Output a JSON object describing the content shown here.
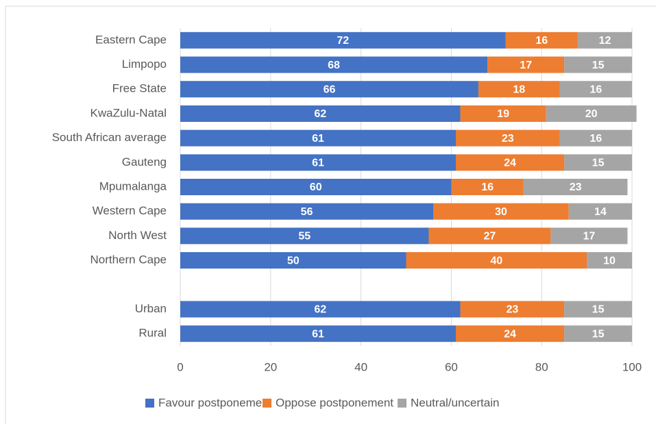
{
  "chart_data": {
    "type": "stacked-bar-horizontal",
    "categories": [
      "Eastern Cape",
      "Limpopo",
      "Free State",
      "KwaZulu-Natal",
      "South African average",
      "Gauteng",
      "Mpumalanga",
      "Western Cape",
      "North West",
      "Northern Cape",
      null,
      "Urban",
      "Rural"
    ],
    "series": [
      {
        "name": "Favour postponement",
        "color": "#4472c4",
        "values": [
          72,
          68,
          66,
          62,
          61,
          61,
          60,
          56,
          55,
          50,
          null,
          62,
          61
        ]
      },
      {
        "name": "Oppose postponement",
        "color": "#ed7d31",
        "values": [
          16,
          17,
          18,
          19,
          23,
          24,
          16,
          30,
          27,
          40,
          null,
          23,
          24
        ]
      },
      {
        "name": "Neutral/uncertain",
        "color": "#a5a5a5",
        "values": [
          12,
          15,
          16,
          20,
          16,
          15,
          23,
          14,
          17,
          10,
          null,
          15,
          15
        ]
      }
    ],
    "xlim": [
      0,
      100
    ],
    "xticks": [
      0,
      20,
      40,
      60,
      80,
      100
    ],
    "grid": true,
    "legend": "bottom"
  }
}
